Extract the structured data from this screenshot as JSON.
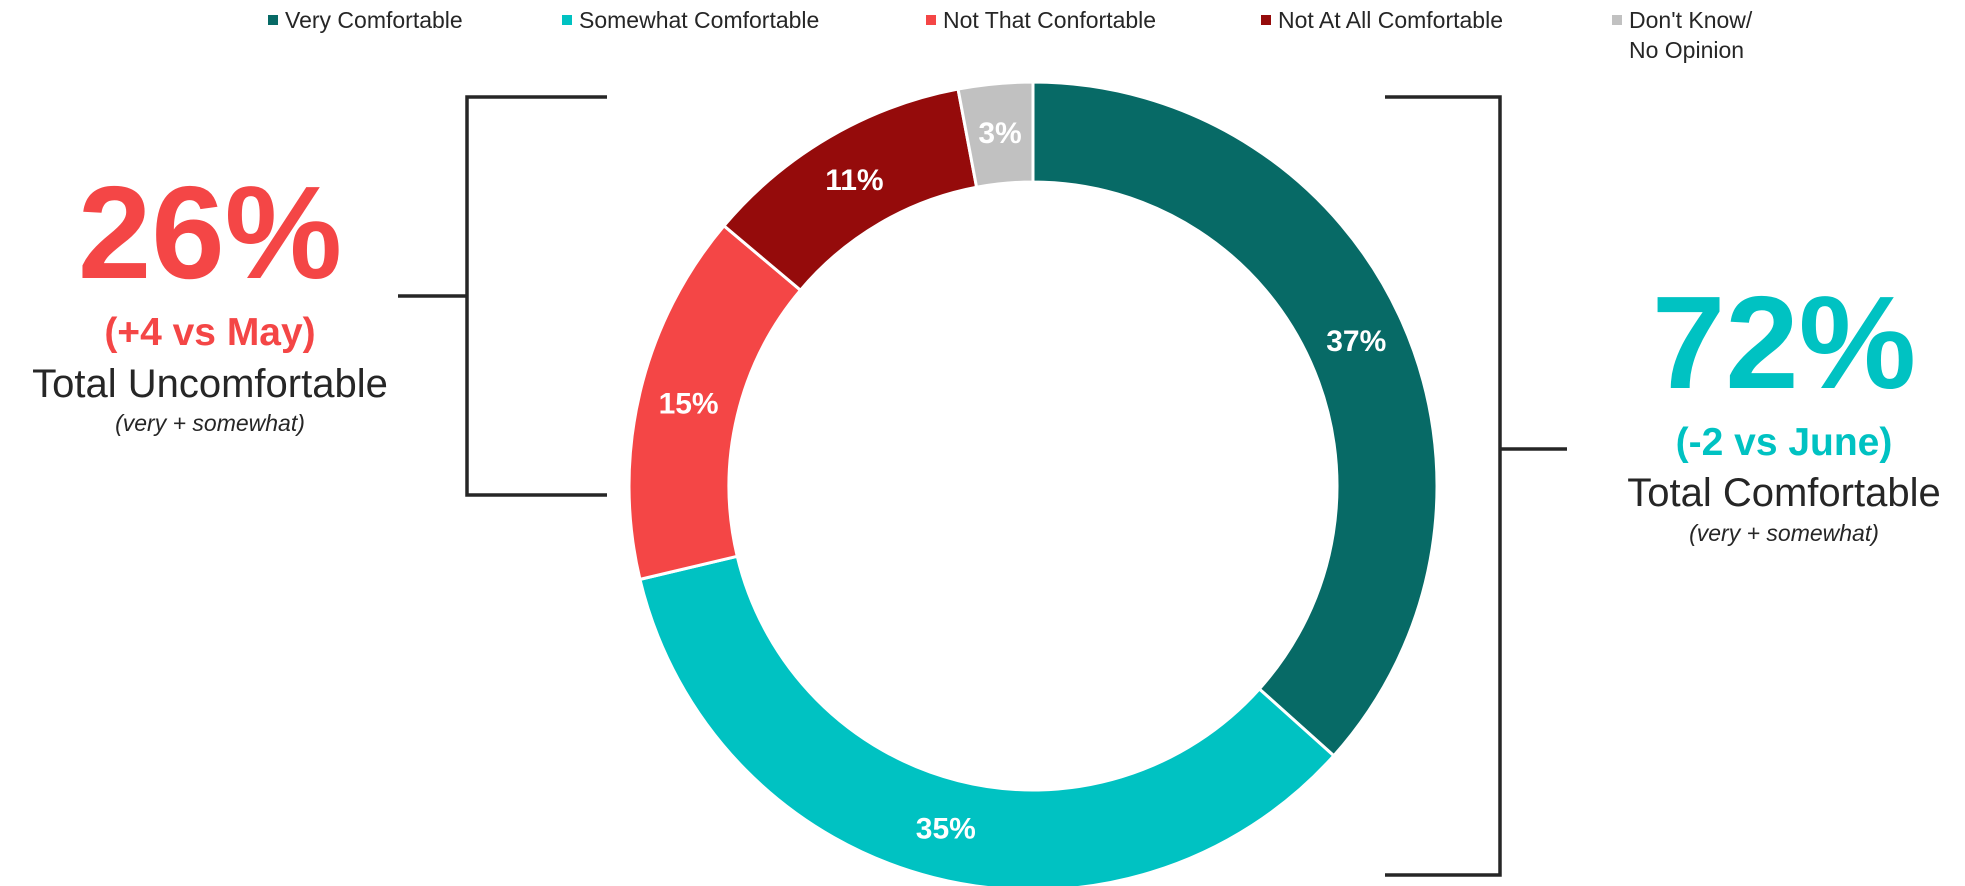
{
  "chart_data": {
    "type": "pie",
    "categories": [
      "Very Comfortable",
      "Somewhat Comfortable",
      "Not That Confortable",
      "Not At All Comfortable",
      "Don't Know/ No Opinion"
    ],
    "values": [
      37,
      35,
      15,
      11,
      3
    ],
    "value_labels": [
      "37%",
      "35%",
      "15%",
      "11%",
      "3%"
    ],
    "colors": [
      "#076a66",
      "#00c2c2",
      "#f44646",
      "#950b0b",
      "#c1c1c1"
    ],
    "legend": {
      "placement": "top",
      "entries": [
        [
          "Very Comfortable"
        ],
        [
          "Somewhat Comfortable"
        ],
        [
          "Not That Confortable"
        ],
        [
          "Not At All Comfortable"
        ],
        [
          "Don't Know/",
          "No Opinion"
        ]
      ]
    },
    "annotations": {
      "uncomfortable": {
        "total": "26%",
        "delta": "(+4 vs May)",
        "label": "Total Uncomfortable",
        "sublabel": "(very + somewhat)",
        "color": "#f44646"
      },
      "comfortable": {
        "total": "72%",
        "delta": "(-2 vs June)",
        "label": "Total Comfortable",
        "sublabel": "(very + somewhat)",
        "color": "#00c2c2"
      }
    }
  }
}
